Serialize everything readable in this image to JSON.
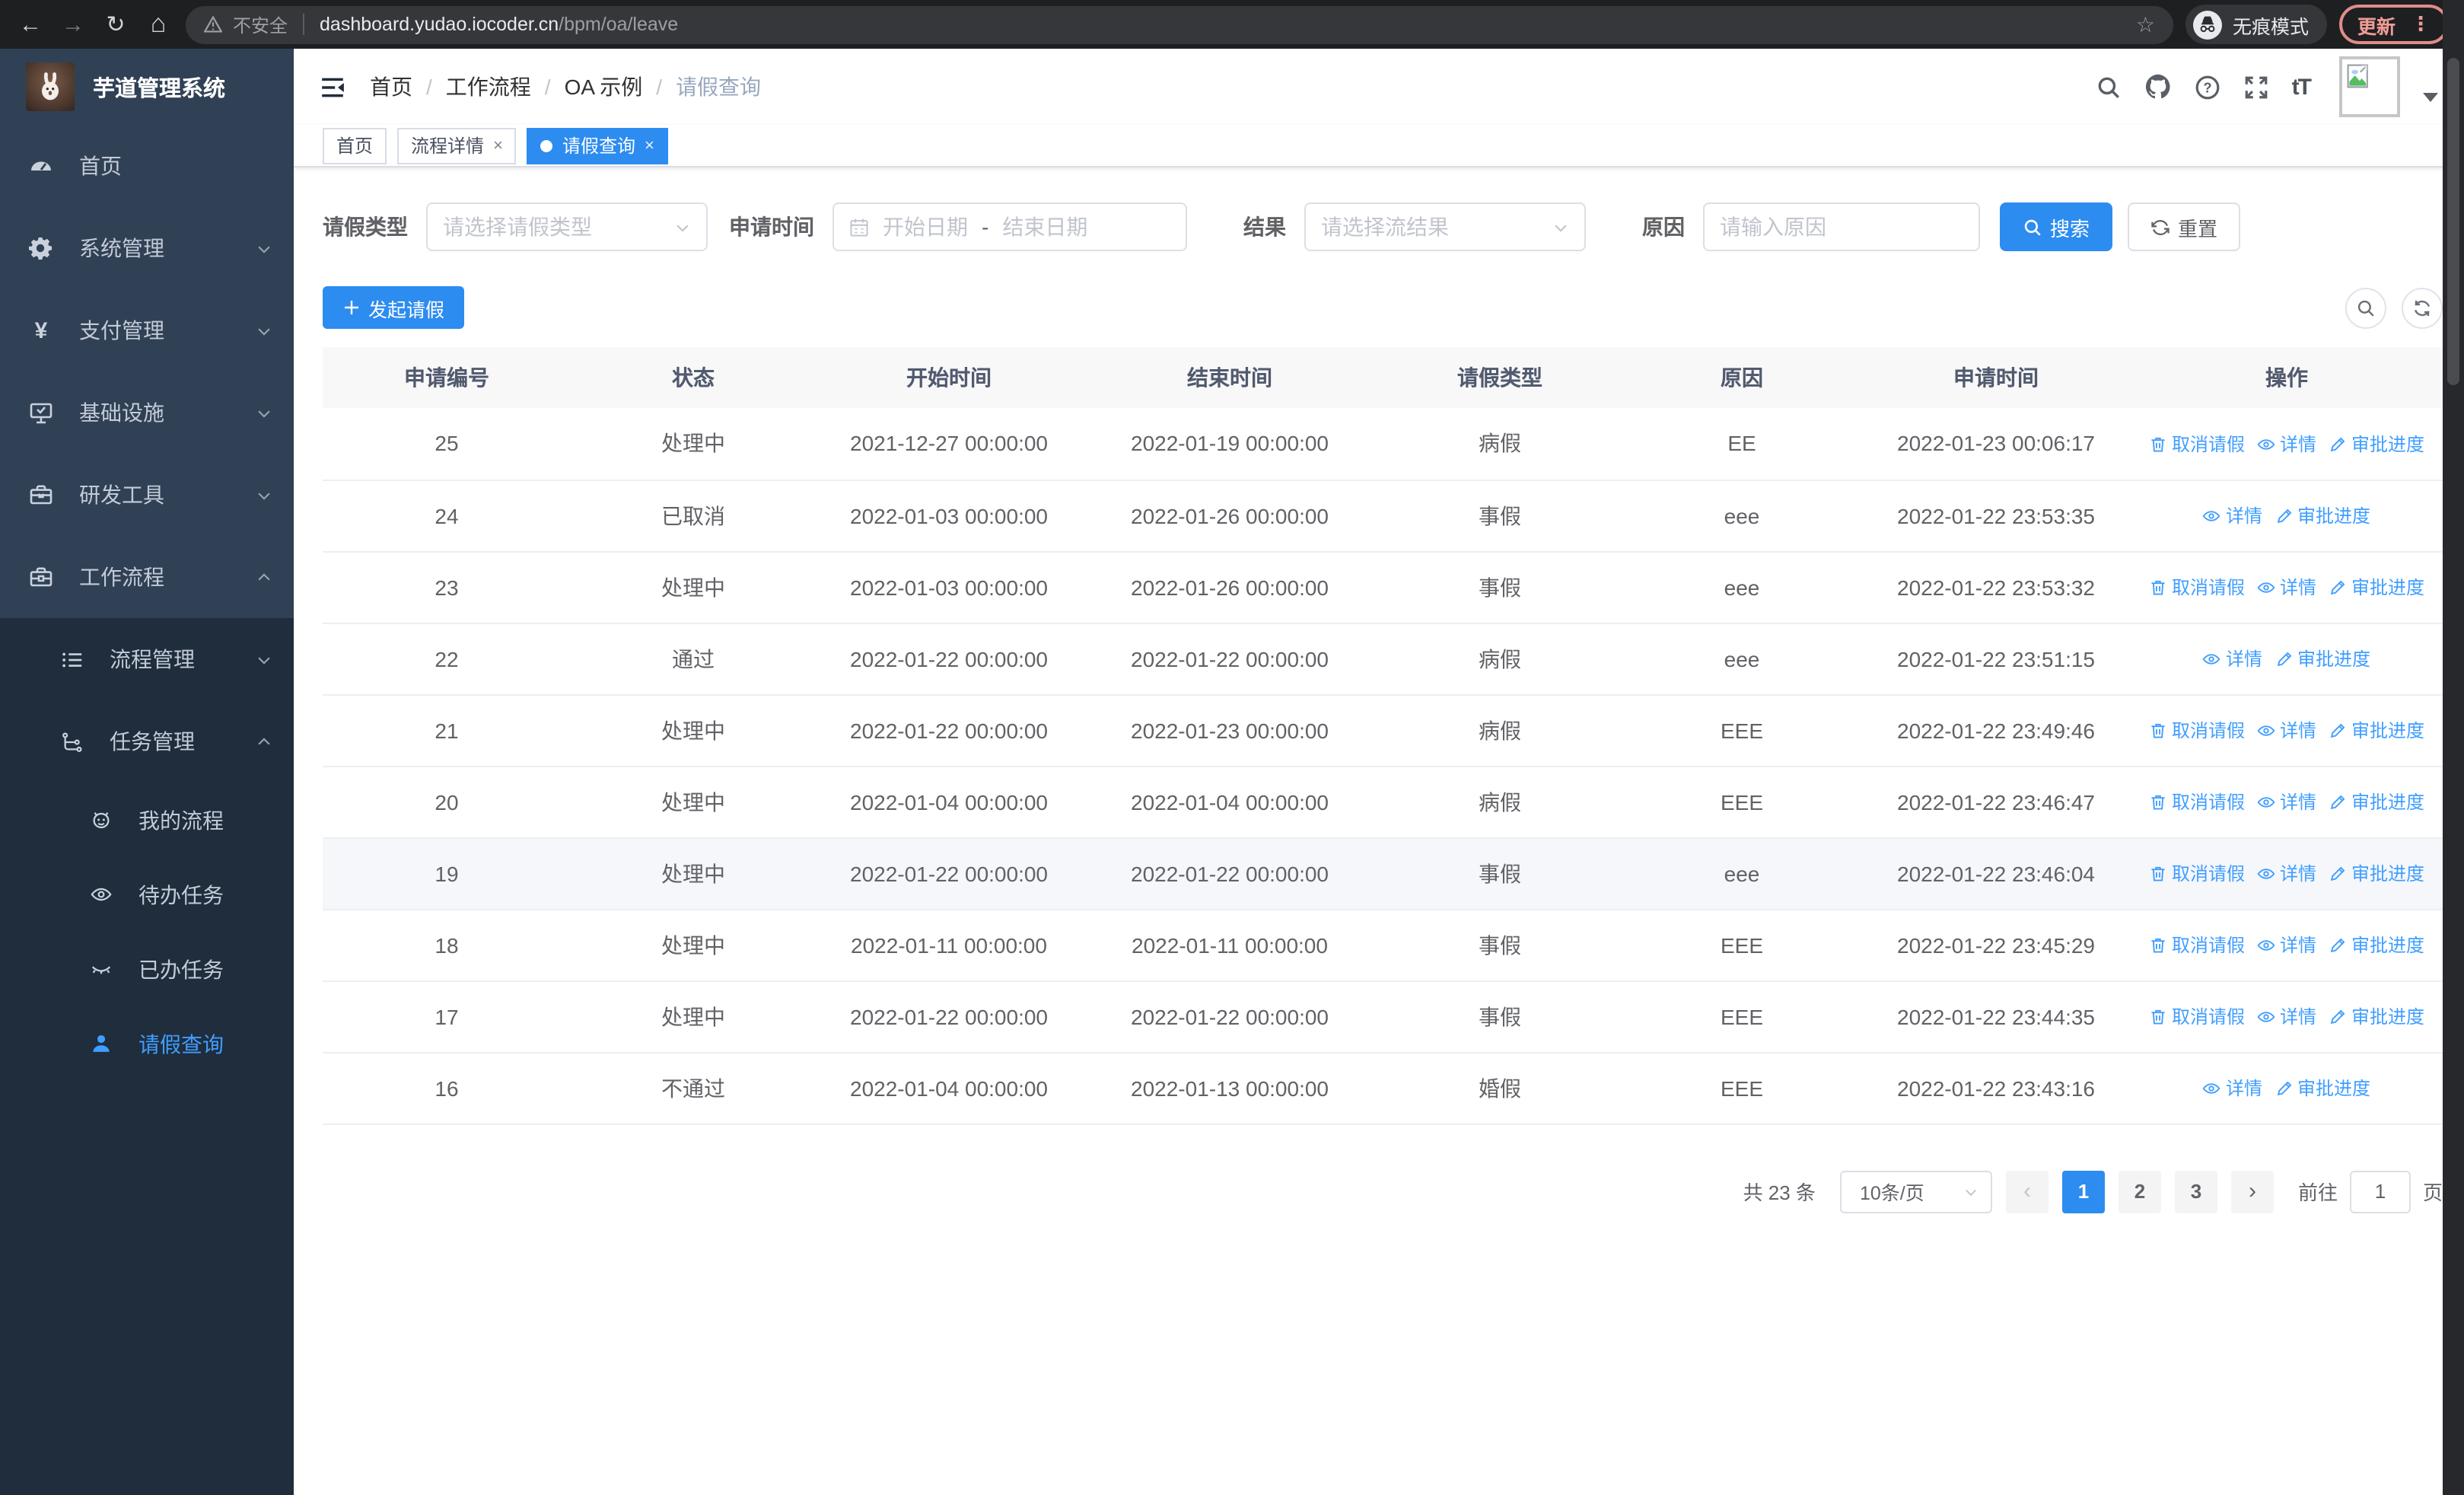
{
  "browser": {
    "security_label": "不安全",
    "url_domain": "dashboard.yudao.iocoder.cn",
    "url_path": "/bpm/oa/leave",
    "incognito_label": "无痕模式",
    "update_label": "更新"
  },
  "sidebar": {
    "title": "芋道管理系统",
    "items": [
      {
        "label": "首页",
        "icon": "dashboard-icon"
      },
      {
        "label": "系统管理",
        "icon": "gear-icon",
        "chevron": "down"
      },
      {
        "label": "支付管理",
        "icon": "yen-icon",
        "chevron": "down"
      },
      {
        "label": "基础设施",
        "icon": "monitor-icon",
        "chevron": "down"
      },
      {
        "label": "研发工具",
        "icon": "toolbox-icon",
        "chevron": "down"
      },
      {
        "label": "工作流程",
        "icon": "briefcase-icon",
        "chevron": "up"
      }
    ],
    "submenu": [
      {
        "label": "流程管理",
        "icon": "list-icon",
        "chevron": "down"
      },
      {
        "label": "任务管理",
        "icon": "tree-icon",
        "chevron": "up"
      },
      {
        "label": "我的流程",
        "icon": "robot-icon"
      },
      {
        "label": "待办任务",
        "icon": "eye-icon"
      },
      {
        "label": "已办任务",
        "icon": "eye-closed-icon"
      },
      {
        "label": "请假查询",
        "icon": "user-icon",
        "active": true
      }
    ]
  },
  "header": {
    "breadcrumb": [
      "首页",
      "工作流程",
      "OA 示例",
      "请假查询"
    ],
    "separator": "/"
  },
  "tabs": [
    {
      "label": "首页",
      "closable": false,
      "active": false
    },
    {
      "label": "流程详情",
      "closable": true,
      "active": false
    },
    {
      "label": "请假查询",
      "closable": true,
      "active": true
    }
  ],
  "filters": {
    "leave_type_label": "请假类型",
    "leave_type_placeholder": "请选择请假类型",
    "apply_time_label": "申请时间",
    "date_start_placeholder": "开始日期",
    "date_separator": "-",
    "date_end_placeholder": "结束日期",
    "result_label": "结果",
    "result_placeholder": "请选择流结果",
    "reason_label": "原因",
    "reason_placeholder": "请输入原因",
    "search_label": "搜索",
    "reset_label": "重置"
  },
  "toolbar": {
    "create_label": "发起请假"
  },
  "table": {
    "columns": [
      "申请编号",
      "状态",
      "开始时间",
      "结束时间",
      "请假类型",
      "原因",
      "申请时间",
      "操作"
    ],
    "action_labels": {
      "cancel": "取消请假",
      "detail": "详情",
      "progress": "审批进度"
    },
    "rows": [
      {
        "id": "25",
        "status": "处理中",
        "start": "2021-12-27 00:00:00",
        "end": "2022-01-19 00:00:00",
        "type": "病假",
        "reason": "EE",
        "applied": "2022-01-23 00:06:17",
        "actions": [
          "cancel",
          "detail",
          "progress"
        ]
      },
      {
        "id": "24",
        "status": "已取消",
        "start": "2022-01-03 00:00:00",
        "end": "2022-01-26 00:00:00",
        "type": "事假",
        "reason": "eee",
        "applied": "2022-01-22 23:53:35",
        "actions": [
          "detail",
          "progress"
        ]
      },
      {
        "id": "23",
        "status": "处理中",
        "start": "2022-01-03 00:00:00",
        "end": "2022-01-26 00:00:00",
        "type": "事假",
        "reason": "eee",
        "applied": "2022-01-22 23:53:32",
        "actions": [
          "cancel",
          "detail",
          "progress"
        ]
      },
      {
        "id": "22",
        "status": "通过",
        "start": "2022-01-22 00:00:00",
        "end": "2022-01-22 00:00:00",
        "type": "病假",
        "reason": "eee",
        "applied": "2022-01-22 23:51:15",
        "actions": [
          "detail",
          "progress"
        ]
      },
      {
        "id": "21",
        "status": "处理中",
        "start": "2022-01-22 00:00:00",
        "end": "2022-01-23 00:00:00",
        "type": "病假",
        "reason": "EEE",
        "applied": "2022-01-22 23:49:46",
        "actions": [
          "cancel",
          "detail",
          "progress"
        ]
      },
      {
        "id": "20",
        "status": "处理中",
        "start": "2022-01-04 00:00:00",
        "end": "2022-01-04 00:00:00",
        "type": "病假",
        "reason": "EEE",
        "applied": "2022-01-22 23:46:47",
        "actions": [
          "cancel",
          "detail",
          "progress"
        ]
      },
      {
        "id": "19",
        "status": "处理中",
        "start": "2022-01-22 00:00:00",
        "end": "2022-01-22 00:00:00",
        "type": "事假",
        "reason": "eee",
        "applied": "2022-01-22 23:46:04",
        "actions": [
          "cancel",
          "detail",
          "progress"
        ],
        "hover": true
      },
      {
        "id": "18",
        "status": "处理中",
        "start": "2022-01-11 00:00:00",
        "end": "2022-01-11 00:00:00",
        "type": "事假",
        "reason": "EEE",
        "applied": "2022-01-22 23:45:29",
        "actions": [
          "cancel",
          "detail",
          "progress"
        ]
      },
      {
        "id": "17",
        "status": "处理中",
        "start": "2022-01-22 00:00:00",
        "end": "2022-01-22 00:00:00",
        "type": "事假",
        "reason": "EEE",
        "applied": "2022-01-22 23:44:35",
        "actions": [
          "cancel",
          "detail",
          "progress"
        ]
      },
      {
        "id": "16",
        "status": "不通过",
        "start": "2022-01-04 00:00:00",
        "end": "2022-01-13 00:00:00",
        "type": "婚假",
        "reason": "EEE",
        "applied": "2022-01-22 23:43:16",
        "actions": [
          "detail",
          "progress"
        ]
      }
    ]
  },
  "pagination": {
    "total_label": "共 23 条",
    "page_size": "10条/页",
    "prev": "‹",
    "next": "›",
    "pages": [
      "1",
      "2",
      "3"
    ],
    "active_page": "1",
    "goto_label": "前往",
    "goto_value": "1",
    "page_unit": "页"
  },
  "colors": {
    "accent": "#2d8cf0",
    "link": "#409eff",
    "sidebar_bg": "#304156",
    "submenu_bg": "#1f2d3d"
  }
}
